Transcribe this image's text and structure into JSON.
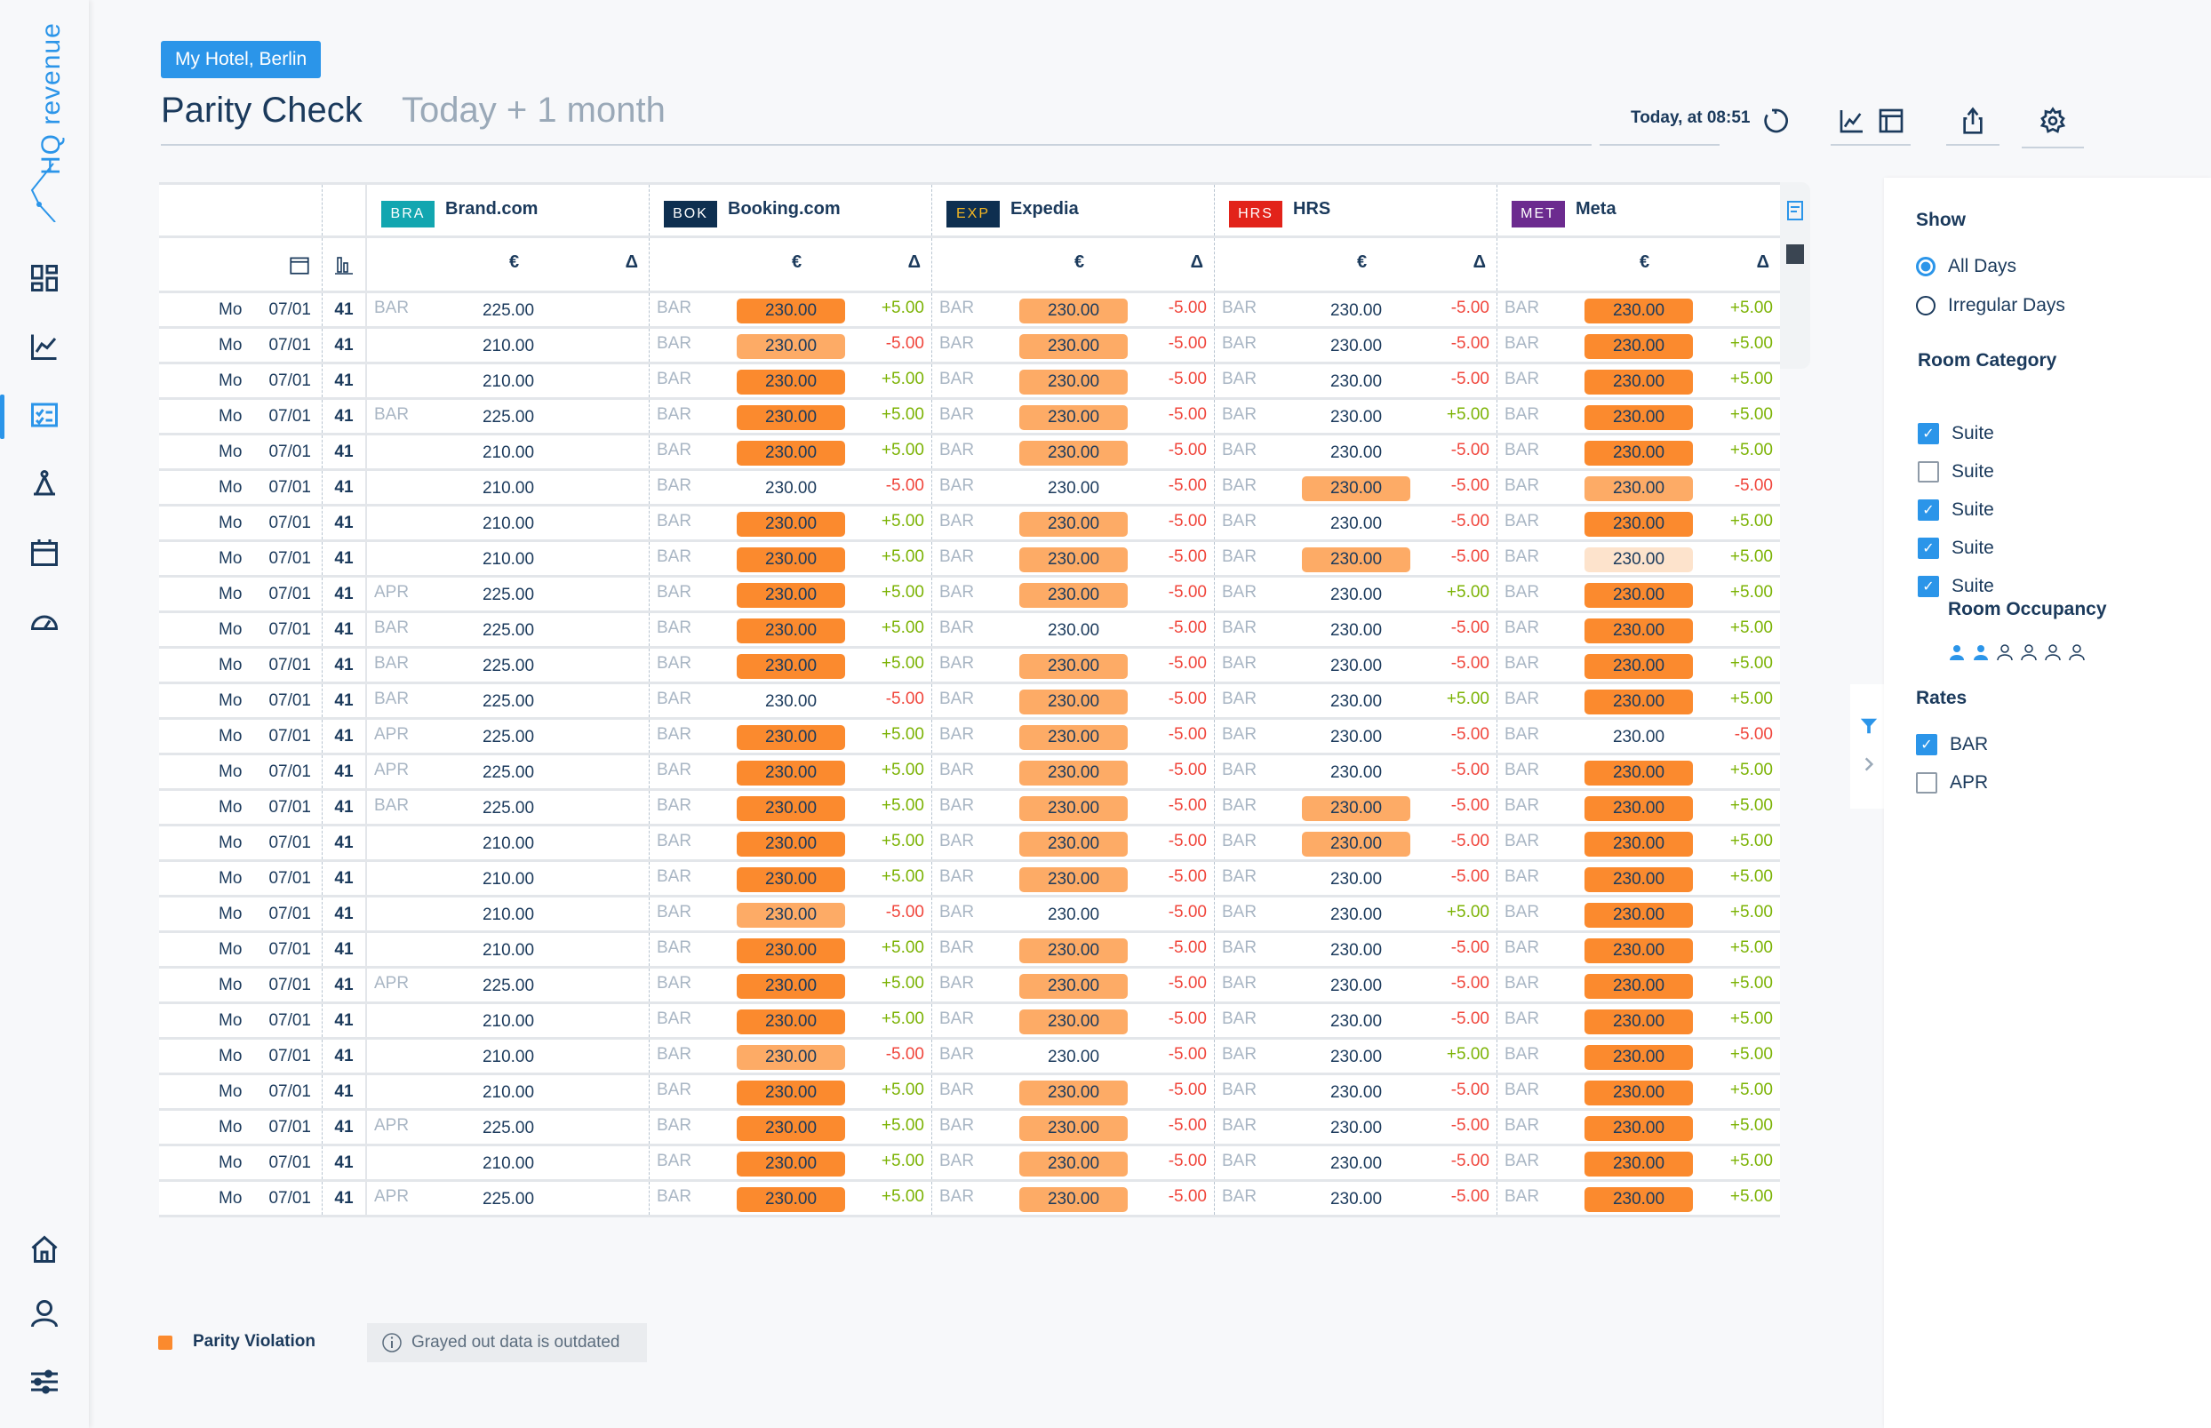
{
  "app": {
    "logo": "HQ revenue",
    "hotel": "My Hotel, Berlin",
    "title": "Parity Check",
    "period": "Today + 1 month",
    "updated": "Today, at 08:51"
  },
  "nav": [
    "dashboard-icon",
    "chart-icon",
    "parity-icon",
    "pricing-icon",
    "calendar-icon",
    "speedometer-icon",
    "home-icon",
    "user-icon",
    "settings-sliders-icon"
  ],
  "colors": {
    "accent": "#2b95e9",
    "violation_strong": "#fb8a2e",
    "violation_medium": "#fdab66",
    "violation_weak": "#fde3cc",
    "positive": "#7cb305",
    "negative": "#f0463c"
  },
  "table": {
    "currency": "€",
    "delta": "Δ",
    "channels": [
      {
        "code": "BRA",
        "name": "Brand.com",
        "color": "#12a6b0",
        "code_color": "#ffffff"
      },
      {
        "code": "BOK",
        "name": "Booking.com",
        "color": "#0e2f50",
        "code_color": "#ffffff"
      },
      {
        "code": "EXP",
        "name": "Expedia",
        "color": "#0e2f50",
        "code_color": "#f5b722"
      },
      {
        "code": "HRS",
        "name": "HRS",
        "color": "#e2231a",
        "code_color": "#ffffff"
      },
      {
        "code": "MET",
        "name": "Meta",
        "color": "#6c2b8f",
        "code_color": "#ffffff"
      }
    ],
    "rows": [
      {
        "day": "Mo",
        "date": "07/01",
        "week": "41",
        "brand": {
          "rate": "BAR",
          "price": "225.00"
        },
        "cells": [
          [
            "BAR",
            "230.00",
            "+5.00",
            "strong"
          ],
          [
            "BAR",
            "230.00",
            "-5.00",
            "medium"
          ],
          [
            "BAR",
            "230.00",
            "-5.00",
            "none"
          ],
          [
            "BAR",
            "230.00",
            "+5.00",
            "strong"
          ]
        ]
      },
      {
        "day": "Mo",
        "date": "07/01",
        "week": "41",
        "brand": {
          "rate": "",
          "price": "210.00"
        },
        "cells": [
          [
            "BAR",
            "230.00",
            "-5.00",
            "medium"
          ],
          [
            "BAR",
            "230.00",
            "-5.00",
            "medium"
          ],
          [
            "BAR",
            "230.00",
            "-5.00",
            "none"
          ],
          [
            "BAR",
            "230.00",
            "+5.00",
            "strong"
          ]
        ]
      },
      {
        "day": "Mo",
        "date": "07/01",
        "week": "41",
        "brand": {
          "rate": "",
          "price": "210.00"
        },
        "cells": [
          [
            "BAR",
            "230.00",
            "+5.00",
            "strong"
          ],
          [
            "BAR",
            "230.00",
            "-5.00",
            "medium"
          ],
          [
            "BAR",
            "230.00",
            "-5.00",
            "none"
          ],
          [
            "BAR",
            "230.00",
            "+5.00",
            "strong"
          ]
        ]
      },
      {
        "day": "Mo",
        "date": "07/01",
        "week": "41",
        "brand": {
          "rate": "BAR",
          "price": "225.00"
        },
        "cells": [
          [
            "BAR",
            "230.00",
            "+5.00",
            "strong"
          ],
          [
            "BAR",
            "230.00",
            "-5.00",
            "medium"
          ],
          [
            "BAR",
            "230.00",
            "+5.00",
            "none"
          ],
          [
            "BAR",
            "230.00",
            "+5.00",
            "strong"
          ]
        ]
      },
      {
        "day": "Mo",
        "date": "07/01",
        "week": "41",
        "brand": {
          "rate": "",
          "price": "210.00"
        },
        "cells": [
          [
            "BAR",
            "230.00",
            "+5.00",
            "strong"
          ],
          [
            "BAR",
            "230.00",
            "-5.00",
            "medium"
          ],
          [
            "BAR",
            "230.00",
            "-5.00",
            "none"
          ],
          [
            "BAR",
            "230.00",
            "+5.00",
            "strong"
          ]
        ]
      },
      {
        "day": "Mo",
        "date": "07/01",
        "week": "41",
        "brand": {
          "rate": "",
          "price": "210.00"
        },
        "cells": [
          [
            "BAR",
            "230.00",
            "-5.00",
            "none"
          ],
          [
            "BAR",
            "230.00",
            "-5.00",
            "none"
          ],
          [
            "BAR",
            "230.00",
            "-5.00",
            "medium"
          ],
          [
            "BAR",
            "230.00",
            "-5.00",
            "medium"
          ]
        ]
      },
      {
        "day": "Mo",
        "date": "07/01",
        "week": "41",
        "brand": {
          "rate": "",
          "price": "210.00"
        },
        "cells": [
          [
            "BAR",
            "230.00",
            "+5.00",
            "strong"
          ],
          [
            "BAR",
            "230.00",
            "-5.00",
            "medium"
          ],
          [
            "BAR",
            "230.00",
            "-5.00",
            "none"
          ],
          [
            "BAR",
            "230.00",
            "+5.00",
            "strong"
          ]
        ]
      },
      {
        "day": "Mo",
        "date": "07/01",
        "week": "41",
        "brand": {
          "rate": "",
          "price": "210.00"
        },
        "cells": [
          [
            "BAR",
            "230.00",
            "+5.00",
            "strong"
          ],
          [
            "BAR",
            "230.00",
            "-5.00",
            "medium"
          ],
          [
            "BAR",
            "230.00",
            "-5.00",
            "medium"
          ],
          [
            "BAR",
            "230.00",
            "+5.00",
            "weak"
          ]
        ]
      },
      {
        "day": "Mo",
        "date": "07/01",
        "week": "41",
        "brand": {
          "rate": "APR",
          "price": "225.00"
        },
        "cells": [
          [
            "BAR",
            "230.00",
            "+5.00",
            "strong"
          ],
          [
            "BAR",
            "230.00",
            "-5.00",
            "medium"
          ],
          [
            "BAR",
            "230.00",
            "+5.00",
            "none"
          ],
          [
            "BAR",
            "230.00",
            "+5.00",
            "strong"
          ]
        ]
      },
      {
        "day": "Mo",
        "date": "07/01",
        "week": "41",
        "brand": {
          "rate": "BAR",
          "price": "225.00"
        },
        "cells": [
          [
            "BAR",
            "230.00",
            "+5.00",
            "strong"
          ],
          [
            "BAR",
            "230.00",
            "-5.00",
            "none"
          ],
          [
            "BAR",
            "230.00",
            "-5.00",
            "none"
          ],
          [
            "BAR",
            "230.00",
            "+5.00",
            "strong"
          ]
        ]
      },
      {
        "day": "Mo",
        "date": "07/01",
        "week": "41",
        "brand": {
          "rate": "BAR",
          "price": "225.00"
        },
        "cells": [
          [
            "BAR",
            "230.00",
            "+5.00",
            "strong"
          ],
          [
            "BAR",
            "230.00",
            "-5.00",
            "medium"
          ],
          [
            "BAR",
            "230.00",
            "-5.00",
            "none"
          ],
          [
            "BAR",
            "230.00",
            "+5.00",
            "strong"
          ]
        ]
      },
      {
        "day": "Mo",
        "date": "07/01",
        "week": "41",
        "brand": {
          "rate": "BAR",
          "price": "225.00"
        },
        "cells": [
          [
            "BAR",
            "230.00",
            "-5.00",
            "none"
          ],
          [
            "BAR",
            "230.00",
            "-5.00",
            "medium"
          ],
          [
            "BAR",
            "230.00",
            "+5.00",
            "none"
          ],
          [
            "BAR",
            "230.00",
            "+5.00",
            "strong"
          ]
        ]
      },
      {
        "day": "Mo",
        "date": "07/01",
        "week": "41",
        "brand": {
          "rate": "APR",
          "price": "225.00"
        },
        "cells": [
          [
            "BAR",
            "230.00",
            "+5.00",
            "strong"
          ],
          [
            "BAR",
            "230.00",
            "-5.00",
            "medium"
          ],
          [
            "BAR",
            "230.00",
            "-5.00",
            "none"
          ],
          [
            "BAR",
            "230.00",
            "-5.00",
            "none"
          ]
        ]
      },
      {
        "day": "Mo",
        "date": "07/01",
        "week": "41",
        "brand": {
          "rate": "APR",
          "price": "225.00"
        },
        "cells": [
          [
            "BAR",
            "230.00",
            "+5.00",
            "strong"
          ],
          [
            "BAR",
            "230.00",
            "-5.00",
            "medium"
          ],
          [
            "BAR",
            "230.00",
            "-5.00",
            "none"
          ],
          [
            "BAR",
            "230.00",
            "+5.00",
            "strong"
          ]
        ]
      },
      {
        "day": "Mo",
        "date": "07/01",
        "week": "41",
        "brand": {
          "rate": "BAR",
          "price": "225.00"
        },
        "cells": [
          [
            "BAR",
            "230.00",
            "+5.00",
            "strong"
          ],
          [
            "BAR",
            "230.00",
            "-5.00",
            "medium"
          ],
          [
            "BAR",
            "230.00",
            "-5.00",
            "medium"
          ],
          [
            "BAR",
            "230.00",
            "+5.00",
            "strong"
          ]
        ]
      },
      {
        "day": "Mo",
        "date": "07/01",
        "week": "41",
        "brand": {
          "rate": "",
          "price": "210.00"
        },
        "cells": [
          [
            "BAR",
            "230.00",
            "+5.00",
            "strong"
          ],
          [
            "BAR",
            "230.00",
            "-5.00",
            "medium"
          ],
          [
            "BAR",
            "230.00",
            "-5.00",
            "medium"
          ],
          [
            "BAR",
            "230.00",
            "+5.00",
            "strong"
          ]
        ]
      },
      {
        "day": "Mo",
        "date": "07/01",
        "week": "41",
        "brand": {
          "rate": "",
          "price": "210.00"
        },
        "cells": [
          [
            "BAR",
            "230.00",
            "+5.00",
            "strong"
          ],
          [
            "BAR",
            "230.00",
            "-5.00",
            "medium"
          ],
          [
            "BAR",
            "230.00",
            "-5.00",
            "none"
          ],
          [
            "BAR",
            "230.00",
            "+5.00",
            "strong"
          ]
        ]
      },
      {
        "day": "Mo",
        "date": "07/01",
        "week": "41",
        "brand": {
          "rate": "",
          "price": "210.00"
        },
        "cells": [
          [
            "BAR",
            "230.00",
            "-5.00",
            "medium"
          ],
          [
            "BAR",
            "230.00",
            "-5.00",
            "none"
          ],
          [
            "BAR",
            "230.00",
            "+5.00",
            "none"
          ],
          [
            "BAR",
            "230.00",
            "+5.00",
            "strong"
          ]
        ]
      },
      {
        "day": "Mo",
        "date": "07/01",
        "week": "41",
        "brand": {
          "rate": "",
          "price": "210.00"
        },
        "cells": [
          [
            "BAR",
            "230.00",
            "+5.00",
            "strong"
          ],
          [
            "BAR",
            "230.00",
            "-5.00",
            "medium"
          ],
          [
            "BAR",
            "230.00",
            "-5.00",
            "none"
          ],
          [
            "BAR",
            "230.00",
            "+5.00",
            "strong"
          ]
        ]
      },
      {
        "day": "Mo",
        "date": "07/01",
        "week": "41",
        "brand": {
          "rate": "APR",
          "price": "225.00"
        },
        "cells": [
          [
            "BAR",
            "230.00",
            "+5.00",
            "strong"
          ],
          [
            "BAR",
            "230.00",
            "-5.00",
            "medium"
          ],
          [
            "BAR",
            "230.00",
            "-5.00",
            "none"
          ],
          [
            "BAR",
            "230.00",
            "+5.00",
            "strong"
          ]
        ]
      },
      {
        "day": "Mo",
        "date": "07/01",
        "week": "41",
        "brand": {
          "rate": "",
          "price": "210.00"
        },
        "cells": [
          [
            "BAR",
            "230.00",
            "+5.00",
            "strong"
          ],
          [
            "BAR",
            "230.00",
            "-5.00",
            "medium"
          ],
          [
            "BAR",
            "230.00",
            "-5.00",
            "none"
          ],
          [
            "BAR",
            "230.00",
            "+5.00",
            "strong"
          ]
        ]
      },
      {
        "day": "Mo",
        "date": "07/01",
        "week": "41",
        "brand": {
          "rate": "",
          "price": "210.00"
        },
        "cells": [
          [
            "BAR",
            "230.00",
            "-5.00",
            "medium"
          ],
          [
            "BAR",
            "230.00",
            "-5.00",
            "none"
          ],
          [
            "BAR",
            "230.00",
            "+5.00",
            "none"
          ],
          [
            "BAR",
            "230.00",
            "+5.00",
            "strong"
          ]
        ]
      },
      {
        "day": "Mo",
        "date": "07/01",
        "week": "41",
        "brand": {
          "rate": "",
          "price": "210.00"
        },
        "cells": [
          [
            "BAR",
            "230.00",
            "+5.00",
            "strong"
          ],
          [
            "BAR",
            "230.00",
            "-5.00",
            "medium"
          ],
          [
            "BAR",
            "230.00",
            "-5.00",
            "none"
          ],
          [
            "BAR",
            "230.00",
            "+5.00",
            "strong"
          ]
        ]
      },
      {
        "day": "Mo",
        "date": "07/01",
        "week": "41",
        "brand": {
          "rate": "APR",
          "price": "225.00"
        },
        "cells": [
          [
            "BAR",
            "230.00",
            "+5.00",
            "strong"
          ],
          [
            "BAR",
            "230.00",
            "-5.00",
            "medium"
          ],
          [
            "BAR",
            "230.00",
            "-5.00",
            "none"
          ],
          [
            "BAR",
            "230.00",
            "+5.00",
            "strong"
          ]
        ]
      },
      {
        "day": "Mo",
        "date": "07/01",
        "week": "41",
        "brand": {
          "rate": "",
          "price": "210.00"
        },
        "cells": [
          [
            "BAR",
            "230.00",
            "+5.00",
            "strong"
          ],
          [
            "BAR",
            "230.00",
            "-5.00",
            "medium"
          ],
          [
            "BAR",
            "230.00",
            "-5.00",
            "none"
          ],
          [
            "BAR",
            "230.00",
            "+5.00",
            "strong"
          ]
        ]
      },
      {
        "day": "Mo",
        "date": "07/01",
        "week": "41",
        "brand": {
          "rate": "APR",
          "price": "225.00"
        },
        "cells": [
          [
            "BAR",
            "230.00",
            "+5.00",
            "strong"
          ],
          [
            "BAR",
            "230.00",
            "-5.00",
            "medium"
          ],
          [
            "BAR",
            "230.00",
            "-5.00",
            "none"
          ],
          [
            "BAR",
            "230.00",
            "+5.00",
            "strong"
          ]
        ]
      }
    ]
  },
  "filters": {
    "show": {
      "label": "Show",
      "options": [
        {
          "label": "All Days",
          "selected": true
        },
        {
          "label": "Irregular Days",
          "selected": false
        }
      ]
    },
    "room_category": {
      "label": "Room Category",
      "items": [
        {
          "label": "Suite",
          "checked": true
        },
        {
          "label": "Suite",
          "checked": false
        },
        {
          "label": "Suite",
          "checked": true
        },
        {
          "label": "Suite",
          "checked": true
        },
        {
          "label": "Suite",
          "checked": true
        }
      ]
    },
    "room_occupancy": {
      "label": "Room Occupancy",
      "selected": 2,
      "max": 6
    },
    "rates": {
      "label": "Rates",
      "items": [
        {
          "label": "BAR",
          "checked": true
        },
        {
          "label": "APR",
          "checked": false
        }
      ]
    }
  },
  "legend": {
    "violation": "Parity Violation",
    "info": "Grayed out data is outdated"
  }
}
